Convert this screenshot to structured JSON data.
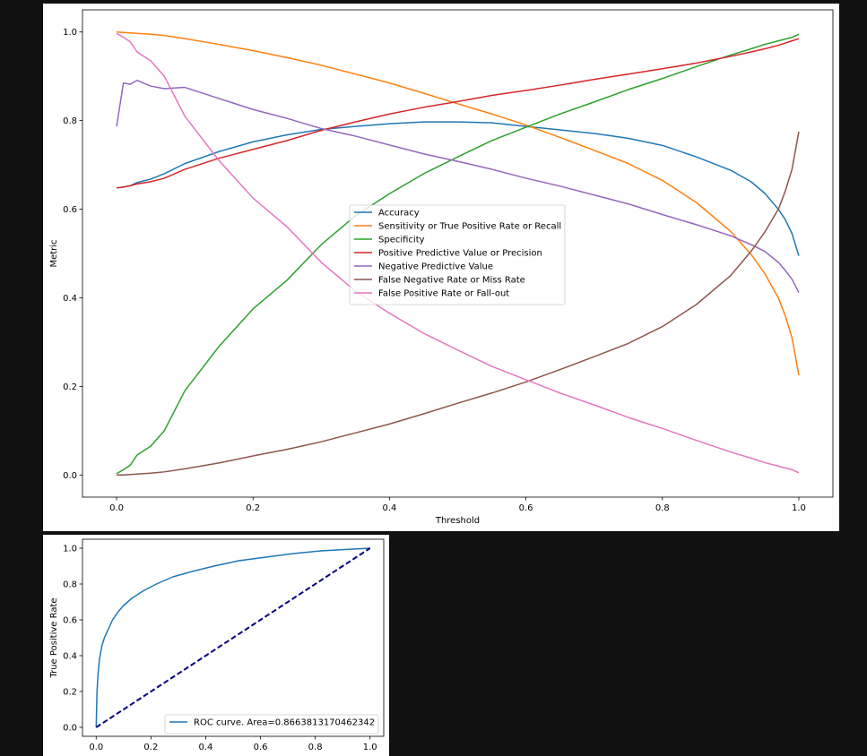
{
  "chart_data": [
    {
      "type": "line",
      "title": "",
      "xlabel": "Threshold",
      "ylabel": "Metric",
      "xlim": [
        -0.05,
        1.05
      ],
      "ylim": [
        -0.05,
        1.05
      ],
      "xticks": [
        0.0,
        0.2,
        0.4,
        0.6,
        0.8,
        1.0
      ],
      "yticks": [
        0.0,
        0.2,
        0.4,
        0.6,
        0.8,
        1.0
      ],
      "tick_labels_x": [
        "0.0",
        "0.2",
        "0.4",
        "0.6",
        "0.8",
        "1.0"
      ],
      "tick_labels_y": [
        "0.0",
        "0.2",
        "0.4",
        "0.6",
        "0.8",
        "1.0"
      ],
      "grid": false,
      "legend_position": "center",
      "x": [
        0.0,
        0.01,
        0.02,
        0.03,
        0.05,
        0.07,
        0.1,
        0.15,
        0.2,
        0.25,
        0.3,
        0.35,
        0.4,
        0.45,
        0.5,
        0.55,
        0.6,
        0.65,
        0.7,
        0.75,
        0.8,
        0.85,
        0.9,
        0.93,
        0.95,
        0.97,
        0.98,
        0.99,
        1.0
      ],
      "series": [
        {
          "name": "Accuracy",
          "color": "#1f77b4",
          "values": [
            0.648,
            0.65,
            0.653,
            0.66,
            0.668,
            0.68,
            0.703,
            0.73,
            0.752,
            0.768,
            0.78,
            0.787,
            0.793,
            0.797,
            0.797,
            0.795,
            0.787,
            0.779,
            0.771,
            0.76,
            0.744,
            0.718,
            0.688,
            0.662,
            0.636,
            0.6,
            0.577,
            0.545,
            0.495
          ]
        },
        {
          "name": "Sensitivity or True Positive Rate or Recall",
          "color": "#ff7f0e",
          "values": [
            1.0,
            0.999,
            0.998,
            0.997,
            0.995,
            0.992,
            0.985,
            0.972,
            0.958,
            0.942,
            0.925,
            0.905,
            0.885,
            0.862,
            0.838,
            0.815,
            0.79,
            0.762,
            0.733,
            0.703,
            0.665,
            0.615,
            0.55,
            0.498,
            0.455,
            0.4,
            0.36,
            0.31,
            0.225
          ]
        },
        {
          "name": "Specificity",
          "color": "#2ca02c",
          "values": [
            0.003,
            0.012,
            0.022,
            0.045,
            0.065,
            0.1,
            0.19,
            0.29,
            0.375,
            0.44,
            0.52,
            0.585,
            0.635,
            0.68,
            0.718,
            0.755,
            0.785,
            0.815,
            0.842,
            0.87,
            0.895,
            0.922,
            0.948,
            0.962,
            0.972,
            0.98,
            0.984,
            0.988,
            0.995
          ]
        },
        {
          "name": "Positive Predictive Value or Precision",
          "color": "#d62728",
          "values": [
            0.648,
            0.65,
            0.653,
            0.657,
            0.662,
            0.67,
            0.69,
            0.715,
            0.735,
            0.755,
            0.778,
            0.797,
            0.815,
            0.83,
            0.843,
            0.857,
            0.868,
            0.88,
            0.893,
            0.905,
            0.917,
            0.93,
            0.945,
            0.955,
            0.962,
            0.97,
            0.975,
            0.98,
            0.985
          ]
        },
        {
          "name": "Negative Predictive Value",
          "color": "#9467bd",
          "values": [
            0.787,
            0.885,
            0.882,
            0.891,
            0.878,
            0.872,
            0.875,
            0.85,
            0.825,
            0.805,
            0.782,
            0.765,
            0.745,
            0.725,
            0.708,
            0.69,
            0.67,
            0.652,
            0.632,
            0.612,
            0.588,
            0.565,
            0.54,
            0.52,
            0.505,
            0.48,
            0.462,
            0.442,
            0.412
          ]
        },
        {
          "name": "False Negative Rate or Miss Rate",
          "color": "#8c564b",
          "values": [
            0.0,
            0.0,
            0.001,
            0.002,
            0.004,
            0.007,
            0.014,
            0.027,
            0.043,
            0.058,
            0.075,
            0.095,
            0.115,
            0.138,
            0.162,
            0.185,
            0.21,
            0.238,
            0.267,
            0.297,
            0.335,
            0.385,
            0.45,
            0.505,
            0.548,
            0.6,
            0.64,
            0.69,
            0.775
          ]
        },
        {
          "name": "False Positive Rate or Fall-out",
          "color": "#e377c2",
          "values": [
            0.997,
            0.988,
            0.978,
            0.955,
            0.935,
            0.9,
            0.81,
            0.71,
            0.625,
            0.56,
            0.48,
            0.415,
            0.365,
            0.32,
            0.282,
            0.245,
            0.215,
            0.185,
            0.158,
            0.13,
            0.105,
            0.078,
            0.052,
            0.038,
            0.028,
            0.02,
            0.016,
            0.012,
            0.005
          ]
        }
      ]
    },
    {
      "type": "line",
      "title": "",
      "xlabel": "",
      "ylabel": "True Positive Rate",
      "xlim": [
        -0.05,
        1.05
      ],
      "ylim": [
        -0.05,
        1.05
      ],
      "xticks": [
        0.0,
        0.2,
        0.4,
        0.6,
        0.8,
        1.0
      ],
      "yticks": [
        0.0,
        0.2,
        0.4,
        0.6,
        0.8,
        1.0
      ],
      "tick_labels_x": [
        "0.0",
        "0.2",
        "0.4",
        "0.6",
        "0.8",
        "1.0"
      ],
      "tick_labels_y": [
        "0.0",
        "0.2",
        "0.4",
        "0.6",
        "0.8",
        "1.0"
      ],
      "grid": false,
      "legend_position": "lower-right",
      "series": [
        {
          "name": "ROC curve. Area=0.8663813170462342",
          "color": "#1f77b4",
          "x": [
            0.0,
            0.003,
            0.007,
            0.012,
            0.02,
            0.03,
            0.045,
            0.06,
            0.08,
            0.1,
            0.13,
            0.17,
            0.22,
            0.28,
            0.35,
            0.43,
            0.52,
            0.62,
            0.72,
            0.82,
            0.9,
            0.96,
            1.0
          ],
          "y": [
            0.0,
            0.2,
            0.3,
            0.38,
            0.45,
            0.5,
            0.55,
            0.6,
            0.645,
            0.68,
            0.72,
            0.76,
            0.8,
            0.84,
            0.87,
            0.9,
            0.93,
            0.95,
            0.97,
            0.985,
            0.992,
            0.997,
            1.0
          ]
        },
        {
          "name": "",
          "color": "#000080",
          "dashed": true,
          "x": [
            0.0,
            1.0
          ],
          "y": [
            0.0,
            1.0
          ]
        }
      ]
    }
  ]
}
